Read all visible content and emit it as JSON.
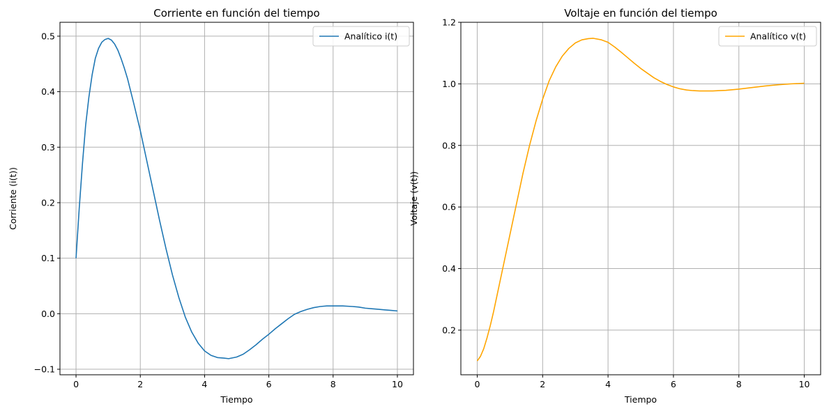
{
  "chart_data": [
    {
      "type": "line",
      "title": "Corriente en función del tiempo",
      "xlabel": "Tiempo",
      "ylabel": "Corriente (i(t))",
      "xlim": [
        -0.5,
        10.5
      ],
      "ylim": [
        -0.11,
        0.525
      ],
      "xticks": [
        0,
        2,
        4,
        6,
        8,
        10
      ],
      "yticks": [
        -0.1,
        0.0,
        0.1,
        0.2,
        0.3,
        0.4,
        0.5
      ],
      "xtick_labels": [
        "0",
        "2",
        "4",
        "6",
        "8",
        "10"
      ],
      "ytick_labels": [
        "−0.1",
        "0.0",
        "0.1",
        "0.2",
        "0.3",
        "0.4",
        "0.5"
      ],
      "grid": true,
      "legend_position": "top-right",
      "series": [
        {
          "name": "Analítico i(t)",
          "color": "#1f77b4",
          "x": [
            0,
            0.1,
            0.2,
            0.3,
            0.4,
            0.5,
            0.6,
            0.7,
            0.8,
            0.9,
            1.0,
            1.1,
            1.2,
            1.3,
            1.4,
            1.5,
            1.6,
            1.8,
            2.0,
            2.2,
            2.4,
            2.6,
            2.8,
            3.0,
            3.2,
            3.4,
            3.6,
            3.8,
            4.0,
            4.2,
            4.4,
            4.6,
            4.75,
            5.0,
            5.2,
            5.4,
            5.6,
            5.8,
            6.0,
            6.2,
            6.4,
            6.6,
            6.8,
            7.0,
            7.2,
            7.4,
            7.6,
            7.8,
            8.0,
            8.3,
            8.6,
            8.8,
            9.0,
            9.2,
            9.4,
            9.6,
            9.8,
            10.0
          ],
          "y": [
            0.1,
            0.19,
            0.27,
            0.34,
            0.39,
            0.43,
            0.46,
            0.478,
            0.489,
            0.494,
            0.496,
            0.493,
            0.486,
            0.475,
            0.46,
            0.443,
            0.424,
            0.378,
            0.33,
            0.276,
            0.222,
            0.168,
            0.117,
            0.07,
            0.029,
            -0.006,
            -0.033,
            -0.053,
            -0.067,
            -0.075,
            -0.079,
            -0.08,
            -0.081,
            -0.078,
            -0.073,
            -0.065,
            -0.056,
            -0.046,
            -0.037,
            -0.027,
            -0.018,
            -0.009,
            -0.001,
            0.004,
            0.008,
            0.011,
            0.013,
            0.014,
            0.014,
            0.014,
            0.013,
            0.012,
            0.01,
            0.009,
            0.008,
            0.007,
            0.006,
            0.005
          ]
        }
      ]
    },
    {
      "type": "line",
      "title": "Voltaje en función del tiempo",
      "xlabel": "Tiempo",
      "ylabel": "Voltaje (v(t))",
      "xlim": [
        -0.5,
        10.5
      ],
      "ylim": [
        0.055,
        1.2
      ],
      "xticks": [
        0,
        2,
        4,
        6,
        8,
        10
      ],
      "yticks": [
        0.2,
        0.4,
        0.6,
        0.8,
        1.0,
        1.2
      ],
      "xtick_labels": [
        "0",
        "2",
        "4",
        "6",
        "8",
        "10"
      ],
      "ytick_labels": [
        "0.2",
        "0.4",
        "0.6",
        "0.8",
        "1.0",
        "1.2"
      ],
      "grid": true,
      "legend_position": "top-right",
      "series": [
        {
          "name": "Analítico v(t)",
          "color": "#ffa500",
          "x": [
            0,
            0.1,
            0.2,
            0.3,
            0.4,
            0.5,
            0.6,
            0.8,
            1.0,
            1.2,
            1.4,
            1.6,
            1.8,
            2.0,
            2.2,
            2.4,
            2.6,
            2.8,
            3.0,
            3.2,
            3.4,
            3.55,
            3.8,
            4.0,
            4.2,
            4.4,
            4.6,
            4.8,
            5.0,
            5.2,
            5.4,
            5.6,
            5.8,
            6.0,
            6.2,
            6.4,
            6.6,
            6.8,
            7.0,
            7.2,
            7.4,
            7.6,
            7.8,
            8.0,
            8.4,
            8.8,
            9.2,
            9.6,
            10.0
          ],
          "y": [
            0.1,
            0.115,
            0.14,
            0.175,
            0.215,
            0.26,
            0.31,
            0.41,
            0.51,
            0.61,
            0.71,
            0.8,
            0.88,
            0.95,
            1.01,
            1.055,
            1.09,
            1.115,
            1.133,
            1.143,
            1.147,
            1.148,
            1.143,
            1.135,
            1.12,
            1.103,
            1.085,
            1.067,
            1.05,
            1.035,
            1.02,
            1.008,
            0.998,
            0.99,
            0.984,
            0.98,
            0.978,
            0.977,
            0.977,
            0.977,
            0.978,
            0.979,
            0.981,
            0.983,
            0.988,
            0.993,
            0.997,
            1.0,
            1.002
          ]
        }
      ]
    }
  ]
}
